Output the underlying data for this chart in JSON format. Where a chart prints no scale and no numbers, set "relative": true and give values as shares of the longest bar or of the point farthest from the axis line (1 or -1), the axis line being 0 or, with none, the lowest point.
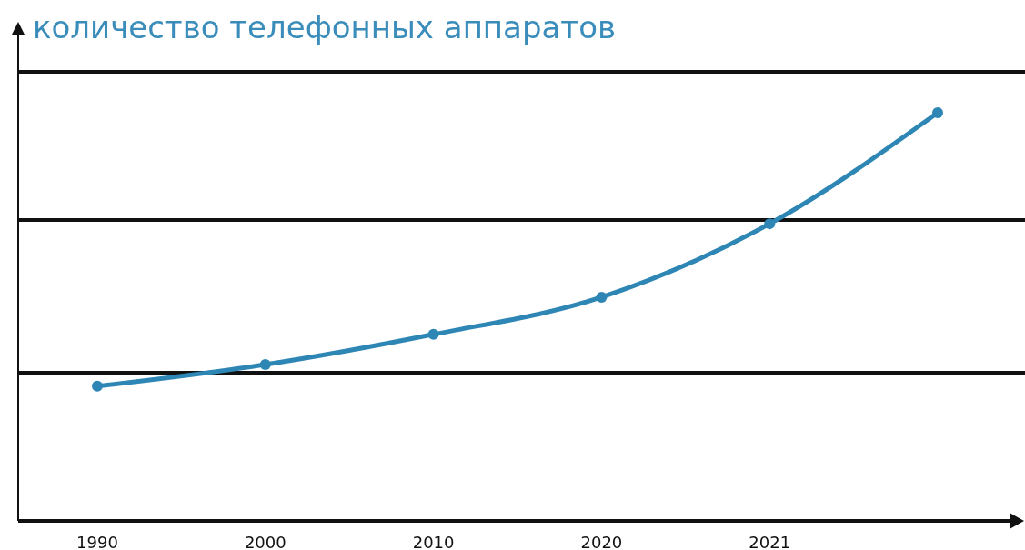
{
  "chart_data": {
    "type": "line",
    "title": "количество телефонных аппаратов",
    "categories": [
      "1990",
      "2000",
      "2010",
      "2020",
      "2021",
      null
    ],
    "relative": true,
    "ref_lines": [
      {
        "axis": "y",
        "value": 0.363,
        "color": "#111111"
      },
      {
        "axis": "y",
        "value": 0.737,
        "color": "#111111"
      },
      {
        "axis": "y",
        "value": 1.1,
        "color": "#111111"
      }
    ],
    "marker": "circle",
    "line_style": "solid",
    "series": [
      {
        "color": "#2e86b5",
        "values": [
          0.33,
          0.383,
          0.457,
          0.548,
          0.728,
          1
        ]
      }
    ]
  }
}
